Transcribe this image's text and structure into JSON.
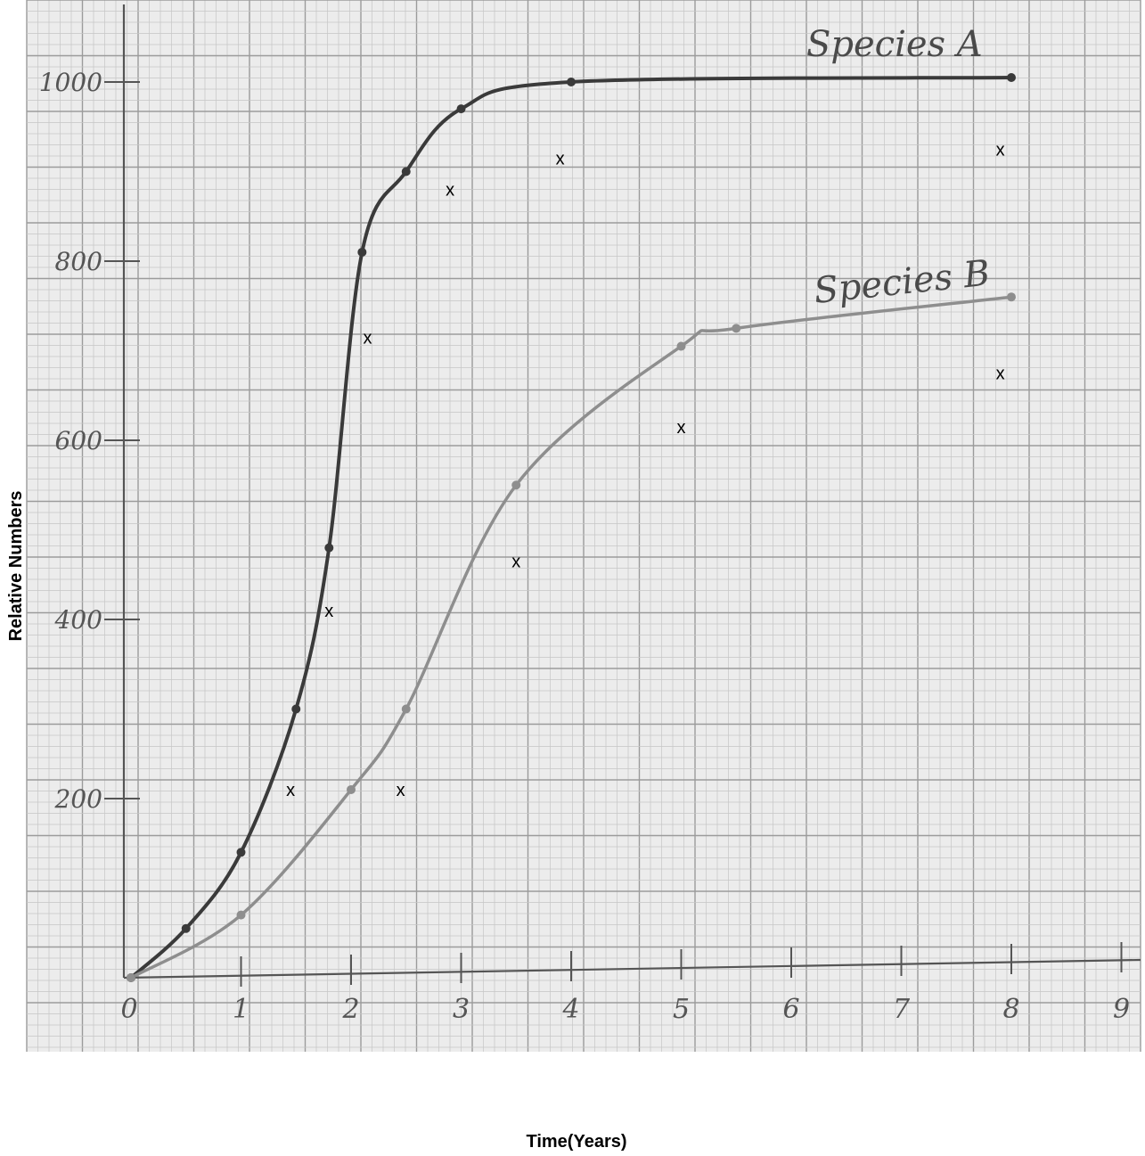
{
  "chart_data": {
    "type": "line",
    "xlabel": "Time(Years)",
    "ylabel": "Relative Numbers",
    "xlim": [
      0,
      9
    ],
    "ylim": [
      0,
      1050
    ],
    "x_ticks": [
      "0",
      "1",
      "2",
      "3",
      "4",
      "5",
      "6",
      "7",
      "8",
      "9"
    ],
    "y_ticks": [
      "200",
      "400",
      "600",
      "800",
      "1000"
    ],
    "grid": true,
    "colors": {
      "paper": "#ececec",
      "grid_minor": "#c6c6c6",
      "grid_major": "#9b9b9b",
      "species_a": "#3a3a3a",
      "species_b": "#8e8e8e"
    },
    "series": [
      {
        "name": "Species A",
        "x": [
          0,
          0.5,
          1,
          1.5,
          1.8,
          2.1,
          2.5,
          3,
          4,
          8
        ],
        "y": [
          0,
          55,
          140,
          300,
          480,
          810,
          900,
          970,
          1000,
          1005
        ]
      },
      {
        "name": "Species B",
        "x": [
          0,
          1,
          2,
          2.5,
          3.5,
          5,
          5.5,
          8
        ],
        "y": [
          0,
          70,
          210,
          300,
          550,
          705,
          725,
          760
        ]
      }
    ],
    "x_marks": {
      "label": "x",
      "points": [
        [
          1.45,
          210
        ],
        [
          1.8,
          410
        ],
        [
          2.15,
          715
        ],
        [
          2.9,
          880
        ],
        [
          3.9,
          915
        ],
        [
          7.9,
          925
        ],
        [
          2.45,
          210
        ],
        [
          3.5,
          465
        ],
        [
          5,
          615
        ],
        [
          7.9,
          675
        ]
      ]
    }
  }
}
